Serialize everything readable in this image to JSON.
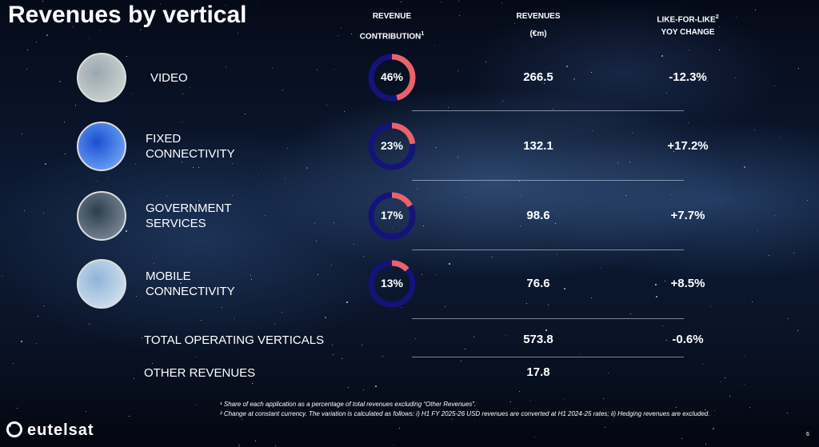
{
  "header": {
    "title": "Revenues by vertical",
    "columns": [
      {
        "lines": [
          "REVENUE",
          "CONTRIBUTION"
        ],
        "sup": "1"
      },
      {
        "lines": [
          "REVENUES",
          "(€m)"
        ]
      },
      {
        "lines": [
          "LIKE-FOR-LIKE",
          "YOY CHANGE"
        ],
        "sup": "2"
      }
    ]
  },
  "rows": [
    {
      "label": [
        "VIDEO"
      ],
      "contribution": 46,
      "contribution_label": "46%",
      "revenue": "266.5",
      "change": "-12.3%"
    },
    {
      "label": [
        "FIXED",
        "CONNECTIVITY"
      ],
      "contribution": 23,
      "contribution_label": "23%",
      "revenue": "132.1",
      "change": "+17.2%"
    },
    {
      "label": [
        "GOVERNMENT",
        "SERVICES"
      ],
      "contribution": 17,
      "contribution_label": "17%",
      "revenue": "98.6",
      "change": "+7.7%"
    },
    {
      "label": [
        "MOBILE",
        "CONNECTIVITY"
      ],
      "contribution": 13,
      "contribution_label": "13%",
      "revenue": "76.6",
      "change": "+8.5%"
    }
  ],
  "totals": [
    {
      "label": "TOTAL OPERATING VERTICALS",
      "revenue": "573.8",
      "change": "-0.6%"
    },
    {
      "label": "OTHER REVENUES",
      "revenue": "17.8"
    }
  ],
  "footnotes": [
    "¹ Share of each application as a percentage of total revenues excluding “Other Revenues”.",
    "² Change at constant currency. The variation is calculated as follows: i) H1 FY 2025-26 USD revenues are converted at H1 2024-25 rates; ii) Hedging revenues are excluded."
  ],
  "logo": "eutelsat",
  "page_number": "6"
}
